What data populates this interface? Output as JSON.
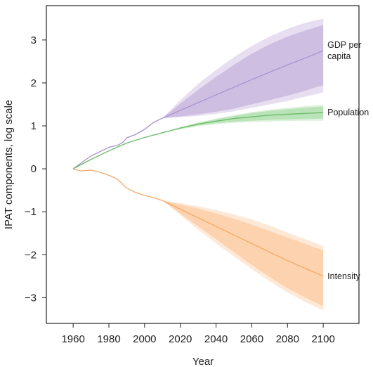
{
  "chart_data": {
    "type": "area",
    "title": "",
    "xlabel": "Year",
    "ylabel": "IPAT components, log scale",
    "xlim": [
      1945,
      2120
    ],
    "ylim": [
      -3.6,
      3.8
    ],
    "x_ticks": [
      1960,
      1980,
      2000,
      2020,
      2040,
      2060,
      2080,
      2100
    ],
    "y_ticks": [
      3,
      2,
      1,
      0,
      -1,
      -2,
      -3
    ],
    "y_tick_labels": [
      "3",
      "2",
      "1",
      "0",
      "−1",
      "−2",
      "−3"
    ],
    "legend": "direct labels at right end of lines",
    "grid": false,
    "series": [
      {
        "name": "GDP per capita",
        "label_lines": [
          "GDP per",
          "capita"
        ],
        "color": "#b9a3d6",
        "line_color": "#ad96cf",
        "historical": {
          "x": [
            1960,
            1965,
            1970,
            1975,
            1980,
            1985,
            1988,
            1990,
            1995,
            2000,
            2005,
            2010
          ],
          "y": [
            0,
            0.15,
            0.3,
            0.4,
            0.5,
            0.55,
            0.62,
            0.72,
            0.8,
            0.92,
            1.08,
            1.18
          ]
        },
        "projection": {
          "x": [
            2010,
            2020,
            2030,
            2040,
            2050,
            2060,
            2070,
            2080,
            2090,
            2100
          ],
          "median": [
            1.18,
            1.36,
            1.54,
            1.72,
            1.9,
            2.08,
            2.25,
            2.42,
            2.58,
            2.75
          ],
          "inner_upper": [
            1.18,
            1.52,
            1.84,
            2.14,
            2.42,
            2.68,
            2.9,
            3.08,
            3.22,
            3.35
          ],
          "inner_lower": [
            1.18,
            1.22,
            1.27,
            1.33,
            1.4,
            1.5,
            1.6,
            1.7,
            1.82,
            1.95
          ],
          "outer_upper": [
            1.18,
            1.6,
            1.98,
            2.3,
            2.6,
            2.86,
            3.08,
            3.26,
            3.4,
            3.5
          ],
          "outer_lower": [
            1.18,
            1.2,
            1.23,
            1.28,
            1.34,
            1.42,
            1.5,
            1.58,
            1.68,
            1.78
          ]
        }
      },
      {
        "name": "Population",
        "label_lines": [
          "Population"
        ],
        "color": "#9fd79c",
        "line_color": "#6dbd6a",
        "historical": {
          "x": [
            1960,
            1970,
            1980,
            1990,
            2000,
            2010
          ],
          "y": [
            0,
            0.22,
            0.42,
            0.6,
            0.73,
            0.84
          ]
        },
        "projection": {
          "x": [
            2010,
            2020,
            2030,
            2040,
            2050,
            2060,
            2070,
            2080,
            2090,
            2100
          ],
          "median": [
            0.84,
            0.95,
            1.04,
            1.11,
            1.17,
            1.21,
            1.25,
            1.27,
            1.29,
            1.31
          ],
          "inner_upper": [
            0.84,
            0.96,
            1.07,
            1.15,
            1.23,
            1.3,
            1.35,
            1.39,
            1.42,
            1.45
          ],
          "inner_lower": [
            0.84,
            0.93,
            1.01,
            1.06,
            1.1,
            1.12,
            1.14,
            1.15,
            1.16,
            1.17
          ],
          "outer_upper": [
            0.84,
            0.97,
            1.08,
            1.17,
            1.25,
            1.32,
            1.38,
            1.42,
            1.46,
            1.49
          ],
          "outer_lower": [
            0.84,
            0.92,
            0.99,
            1.04,
            1.07,
            1.09,
            1.1,
            1.11,
            1.12,
            1.12
          ]
        }
      },
      {
        "name": "Intensity",
        "label_lines": [
          "Intensity"
        ],
        "color": "#fbc08c",
        "line_color": "#f4ad6d",
        "historical": {
          "x": [
            1960,
            1964,
            1970,
            1975,
            1980,
            1985,
            1990,
            1995,
            2000,
            2005,
            2010
          ],
          "y": [
            0,
            -0.05,
            -0.03,
            -0.08,
            -0.15,
            -0.25,
            -0.45,
            -0.55,
            -0.62,
            -0.67,
            -0.74
          ]
        },
        "projection": {
          "x": [
            2010,
            2020,
            2030,
            2040,
            2050,
            2060,
            2070,
            2080,
            2090,
            2100
          ],
          "median": [
            -0.74,
            -0.94,
            -1.14,
            -1.34,
            -1.54,
            -1.74,
            -1.94,
            -2.14,
            -2.32,
            -2.5
          ],
          "inner_upper": [
            -0.74,
            -0.83,
            -0.93,
            -1.04,
            -1.16,
            -1.3,
            -1.45,
            -1.6,
            -1.75,
            -1.9
          ],
          "inner_lower": [
            -0.74,
            -1.04,
            -1.34,
            -1.64,
            -1.94,
            -2.24,
            -2.52,
            -2.78,
            -3.0,
            -3.2
          ],
          "outer_upper": [
            -0.74,
            -0.8,
            -0.87,
            -0.96,
            -1.06,
            -1.18,
            -1.32,
            -1.48,
            -1.64,
            -1.8
          ],
          "outer_lower": [
            -0.74,
            -1.08,
            -1.42,
            -1.74,
            -2.04,
            -2.34,
            -2.62,
            -2.88,
            -3.1,
            -3.3
          ]
        }
      }
    ]
  }
}
